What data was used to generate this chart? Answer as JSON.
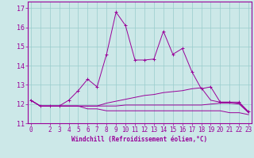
{
  "xlabel": "Windchill (Refroidissement éolien,°C)",
  "background_color": "#cce8e8",
  "line_color": "#990099",
  "grid_color": "#99cccc",
  "x_ticks": [
    0,
    2,
    3,
    4,
    5,
    6,
    7,
    8,
    9,
    10,
    11,
    12,
    13,
    14,
    15,
    16,
    17,
    18,
    19,
    20,
    21,
    22,
    23
  ],
  "ylim": [
    11.0,
    17.35
  ],
  "xlim": [
    -0.3,
    23.3
  ],
  "yticks": [
    11,
    12,
    13,
    14,
    15,
    16,
    17
  ],
  "series": [
    [
      12.2,
      11.9,
      11.9,
      11.9,
      12.2,
      12.7,
      13.3,
      12.9,
      14.6,
      16.8,
      16.1,
      14.3,
      14.3,
      14.35,
      15.8,
      14.6,
      14.9,
      13.7,
      12.8,
      12.9,
      12.1,
      12.1,
      12.1,
      11.6
    ],
    [
      12.2,
      11.9,
      11.9,
      11.9,
      11.9,
      11.9,
      11.9,
      11.9,
      12.05,
      12.15,
      12.25,
      12.35,
      12.45,
      12.5,
      12.6,
      12.65,
      12.7,
      12.8,
      12.85,
      12.2,
      12.1,
      12.1,
      12.05,
      11.55
    ],
    [
      12.2,
      11.9,
      11.9,
      11.9,
      11.9,
      11.9,
      11.9,
      11.9,
      11.9,
      11.9,
      11.95,
      11.95,
      11.95,
      11.95,
      11.95,
      11.95,
      11.95,
      11.95,
      11.95,
      12.0,
      12.05,
      12.05,
      12.0,
      11.55
    ],
    [
      12.2,
      11.9,
      11.9,
      11.9,
      11.9,
      11.9,
      11.75,
      11.75,
      11.65,
      11.65,
      11.65,
      11.65,
      11.65,
      11.65,
      11.65,
      11.65,
      11.65,
      11.65,
      11.65,
      11.65,
      11.65,
      11.55,
      11.55,
      11.45
    ]
  ],
  "tick_fontsize": 5.5,
  "xlabel_fontsize": 5.5
}
